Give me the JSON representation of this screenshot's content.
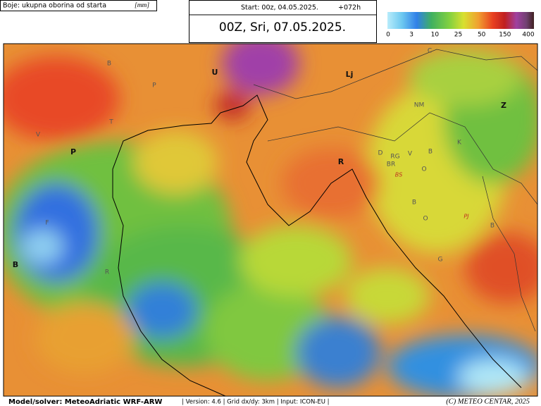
{
  "header": {
    "legend_title": "Boje: ukupna oborina od starta",
    "legend_unit": "[mm]",
    "start": "Start: 00z, 04.05.2025.",
    "lead": "+072h",
    "valid": "00Z, Sri, 07.05.2025."
  },
  "colorbar": {
    "ticks": [
      0,
      3,
      10,
      25,
      50,
      150,
      400
    ]
  },
  "map": {
    "labels": [
      "U",
      "Lj",
      "Z",
      "P",
      "B",
      "R",
      "B",
      "P",
      "T",
      "V",
      "C",
      "NM",
      "K",
      "D",
      "RG",
      "V",
      "B",
      "BR",
      "BS",
      "O",
      "B",
      "O",
      "PJ",
      "B",
      "G",
      "F",
      "R"
    ]
  },
  "footer": {
    "model": "Model/solver: MeteoAdriatic WRF-ARW",
    "info": "| Version: 4.6 | Grid dx/dy: 3km | Input: ICON-EU |",
    "copyright": "(C) METEO CENTAR, 2025"
  }
}
